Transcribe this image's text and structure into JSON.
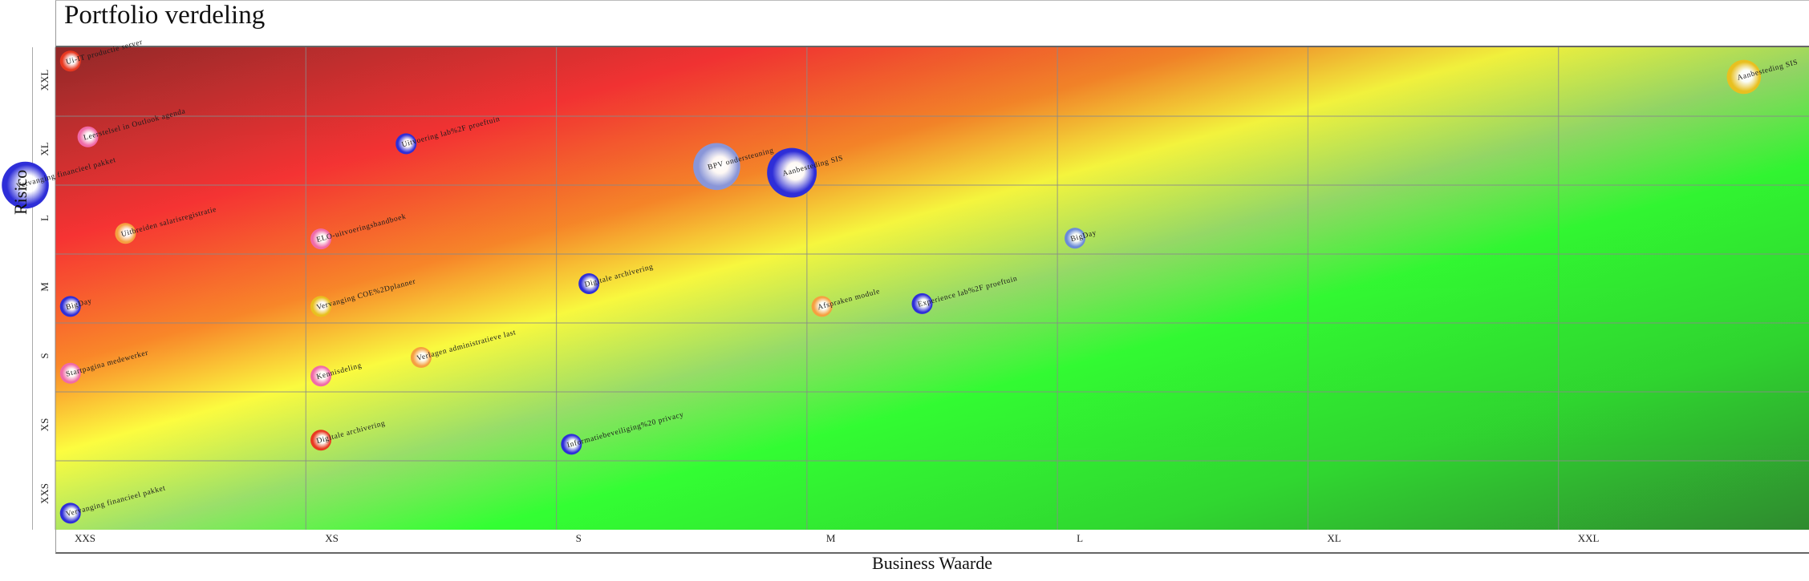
{
  "chart_data": {
    "type": "scatter",
    "title": "Portfolio verdeling",
    "xlabel": "Business Waarde",
    "ylabel": "Risico",
    "x_categories": [
      "XXS",
      "XS",
      "S",
      "M",
      "L",
      "XL",
      "XXL"
    ],
    "y_categories": [
      "XXS",
      "XS",
      "S",
      "M",
      "L",
      "XL",
      "XXL"
    ],
    "grid": true,
    "background": "diagonal gradient: red/dark-red at high risk + low value to green at low risk + high value",
    "colors": {
      "blue": "#2e2ed8",
      "pink": "#f06aa8",
      "orange": "#f5a040",
      "red": "#e83820",
      "gold": "#e8c020",
      "lightblue": "#6a8ad8",
      "periwinkle": "#8a96d8"
    },
    "points": [
      {
        "label": "Ui-IT productie server",
        "x": 0.06,
        "y": 6.8,
        "size": 1,
        "color": "red"
      },
      {
        "label": "Leerstelsel in Outlook agenda",
        "x": 0.13,
        "y": 5.7,
        "size": 1,
        "color": "pink"
      },
      {
        "label": "Vervanging financieel pakket",
        "x": -0.12,
        "y": 5.0,
        "size": 4,
        "color": "blue"
      },
      {
        "label": "Uitbreiden salarisregistratie",
        "x": 0.28,
        "y": 4.3,
        "size": 1,
        "color": "orange"
      },
      {
        "label": "Uitvoering lab%2F proeftuin",
        "x": 1.4,
        "y": 5.6,
        "size": 1,
        "color": "blue"
      },
      {
        "label": "BPV ondersteuning",
        "x": 2.64,
        "y": 5.27,
        "size": 4,
        "color": "periwinkle"
      },
      {
        "label": "Aanbesteding SIS",
        "x": 2.94,
        "y": 5.18,
        "size": 4.5,
        "color": "blue"
      },
      {
        "label": "Aanbesteding SIS",
        "x": 6.74,
        "y": 6.57,
        "size": 2,
        "color": "gold"
      },
      {
        "label": "ELO-uitvoeringshandboek",
        "x": 1.06,
        "y": 4.22,
        "size": 1,
        "color": "pink"
      },
      {
        "label": "BigDay",
        "x": 4.07,
        "y": 4.23,
        "size": 1,
        "color": "lightblue"
      },
      {
        "label": "BigDay",
        "x": 0.06,
        "y": 3.24,
        "size": 1,
        "color": "blue"
      },
      {
        "label": "Vervanging COE%2Dplanner",
        "x": 1.06,
        "y": 3.24,
        "size": 1,
        "color": "gold"
      },
      {
        "label": "Digitale archivering",
        "x": 2.13,
        "y": 3.57,
        "size": 1,
        "color": "blue"
      },
      {
        "label": "Afspraken module",
        "x": 3.06,
        "y": 3.24,
        "size": 1,
        "color": "orange"
      },
      {
        "label": "Experience lab%2F proeftuin",
        "x": 3.46,
        "y": 3.28,
        "size": 1,
        "color": "blue"
      },
      {
        "label": "Startpagina medewerker",
        "x": 0.06,
        "y": 2.27,
        "size": 1,
        "color": "pink"
      },
      {
        "label": "Kennisdeling",
        "x": 1.06,
        "y": 2.23,
        "size": 1,
        "color": "pink"
      },
      {
        "label": "Verlagen administratieve last",
        "x": 1.46,
        "y": 2.5,
        "size": 1,
        "color": "orange"
      },
      {
        "label": "Digitale archivering",
        "x": 1.06,
        "y": 1.3,
        "size": 1,
        "color": "red"
      },
      {
        "label": "Informatiebeveiliging%20 privacy",
        "x": 2.06,
        "y": 1.24,
        "size": 1,
        "color": "blue"
      },
      {
        "label": "Vervanging financieel pakket",
        "x": 0.06,
        "y": 0.24,
        "size": 1,
        "color": "blue"
      }
    ]
  }
}
